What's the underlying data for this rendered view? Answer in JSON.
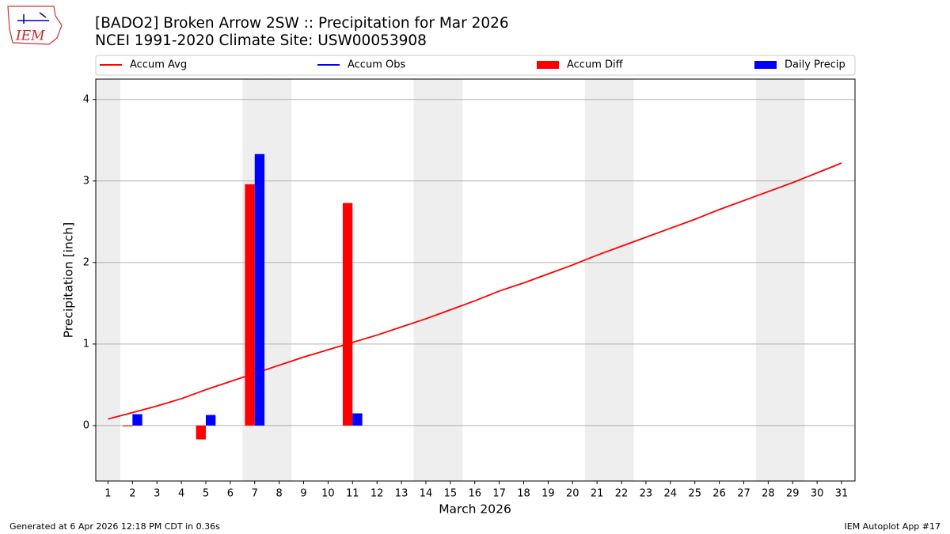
{
  "logo_text": "IEM",
  "chart_data": {
    "type": "bar",
    "title": "[BADO2] Broken Arrow 2SW :: Precipitation for Mar 2026",
    "subtitle": "NCEI 1991-2020 Climate Site: USW00053908",
    "xlabel": "March 2026",
    "ylabel": "Precipitation [inch]",
    "x": [
      1,
      2,
      3,
      4,
      5,
      6,
      7,
      8,
      9,
      10,
      11,
      12,
      13,
      14,
      15,
      16,
      17,
      18,
      19,
      20,
      21,
      22,
      23,
      24,
      25,
      26,
      27,
      28,
      29,
      30,
      31
    ],
    "xlim": [
      0.5,
      31.55
    ],
    "xticks": [
      1,
      2,
      3,
      4,
      5,
      6,
      7,
      8,
      9,
      10,
      11,
      12,
      13,
      14,
      15,
      16,
      17,
      18,
      19,
      20,
      21,
      22,
      23,
      24,
      25,
      26,
      27,
      28,
      29,
      30,
      31
    ],
    "ylim": [
      -0.68,
      4.25
    ],
    "yticks": [
      0,
      1,
      2,
      3,
      4
    ],
    "grid": true,
    "shaded_days": [
      1,
      7,
      8,
      14,
      15,
      21,
      22,
      28,
      29
    ],
    "series": [
      {
        "name": "Accum Avg",
        "kind": "line",
        "color": "#ff0000",
        "values": [
          0.08,
          0.16,
          0.24,
          0.33,
          0.44,
          0.54,
          0.64,
          0.74,
          0.84,
          0.93,
          1.02,
          1.11,
          1.21,
          1.31,
          1.42,
          1.53,
          1.65,
          1.75,
          1.86,
          1.97,
          2.09,
          2.2,
          2.31,
          2.42,
          2.53,
          2.65,
          2.76,
          2.87,
          2.98,
          3.1,
          3.22
        ]
      },
      {
        "name": "Accum Obs",
        "kind": "line",
        "color": "#0000ff",
        "values": [
          null,
          null,
          null,
          null,
          null,
          null,
          null,
          null,
          null,
          null,
          null,
          null,
          null,
          null,
          null,
          null,
          null,
          null,
          null,
          null,
          null,
          null,
          null,
          null,
          null,
          null,
          null,
          null,
          null,
          null,
          null
        ]
      },
      {
        "name": "Accum Diff",
        "kind": "bar",
        "color": "#ff0000",
        "values": [
          null,
          -0.01,
          null,
          null,
          -0.17,
          null,
          2.96,
          null,
          null,
          null,
          2.73,
          null,
          null,
          null,
          null,
          null,
          null,
          null,
          null,
          null,
          null,
          null,
          null,
          null,
          null,
          null,
          null,
          null,
          null,
          null,
          null
        ]
      },
      {
        "name": "Daily Precip",
        "kind": "bar",
        "color": "#0000ff",
        "values": [
          null,
          0.14,
          null,
          null,
          0.13,
          null,
          3.33,
          null,
          null,
          null,
          0.15,
          null,
          null,
          null,
          null,
          null,
          null,
          null,
          null,
          null,
          null,
          null,
          null,
          null,
          null,
          null,
          null,
          null,
          null,
          null,
          null
        ]
      }
    ],
    "footer_left": "Generated at 6 Apr 2026 12:18 PM CDT in 0.36s",
    "footer_right": "IEM Autoplot App #17"
  }
}
